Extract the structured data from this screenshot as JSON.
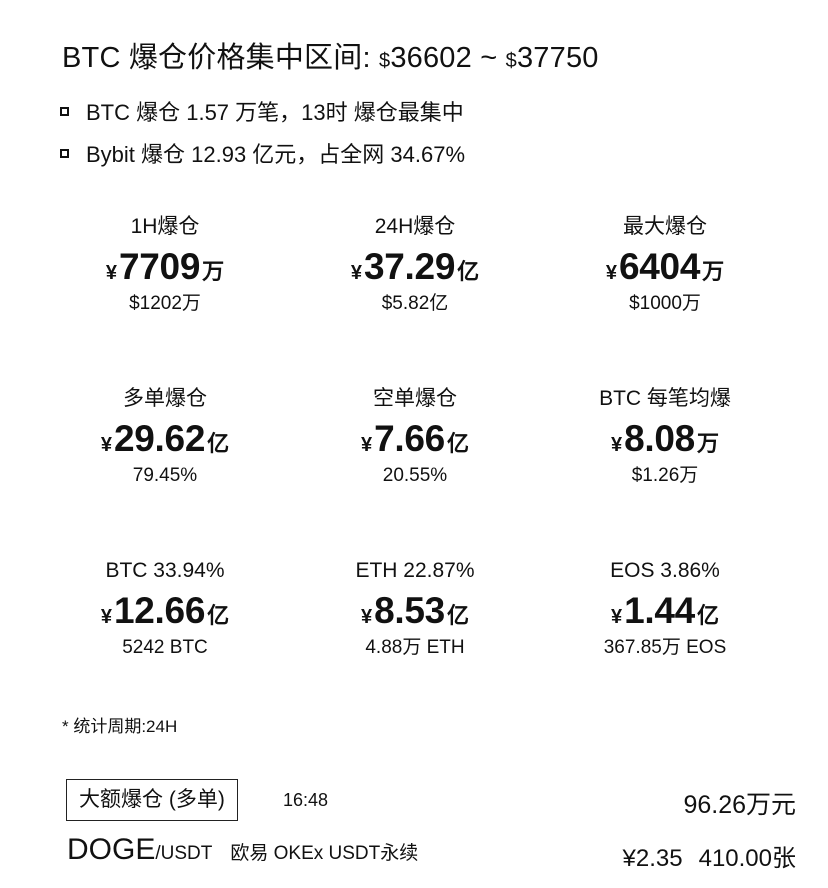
{
  "header": {
    "title_prefix": "BTC 爆仓价格集中区间: ",
    "dollar": "$",
    "low": "36602",
    "sep": " ~ ",
    "high": "37750"
  },
  "bullets": [
    "BTC 爆仓 1.57 万笔，13时 爆仓最集中",
    "Bybit 爆仓 12.93 亿元，占全网 34.67%"
  ],
  "stats": [
    {
      "label": "1H爆仓",
      "currency": "¥",
      "value": "7709",
      "unit": "万",
      "sub": "$1202万"
    },
    {
      "label": "24H爆仓",
      "currency": "¥",
      "value": "37.29",
      "unit": "亿",
      "sub": "$5.82亿"
    },
    {
      "label": "最大爆仓",
      "currency": "¥",
      "value": "6404",
      "unit": "万",
      "sub": "$1000万"
    },
    {
      "label": "多单爆仓",
      "currency": "¥",
      "value": "29.62",
      "unit": "亿",
      "sub": "79.45%"
    },
    {
      "label": "空单爆仓",
      "currency": "¥",
      "value": "7.66",
      "unit": "亿",
      "sub": "20.55%"
    },
    {
      "label": "BTC 每笔均爆",
      "currency": "¥",
      "value": "8.08",
      "unit": "万",
      "sub": "$1.26万"
    },
    {
      "label": "BTC 33.94%",
      "currency": "¥",
      "value": "12.66",
      "unit": "亿",
      "sub": "5242 BTC"
    },
    {
      "label": "ETH 22.87%",
      "currency": "¥",
      "value": "8.53",
      "unit": "亿",
      "sub": "4.88万 ETH"
    },
    {
      "label": "EOS 3.86%",
      "currency": "¥",
      "value": "1.44",
      "unit": "亿",
      "sub": "367.85万 EOS"
    }
  ],
  "note": "* 统计周期:24H",
  "big_liquidation": {
    "tag": "大额爆仓 (多单)",
    "time": "16:48",
    "amount": "96.26万元",
    "symbol": "DOGE",
    "quote": "/USDT",
    "exchange": "欧易 OKEx USDT永续",
    "price": "¥2.35",
    "quantity": "410.00张"
  }
}
